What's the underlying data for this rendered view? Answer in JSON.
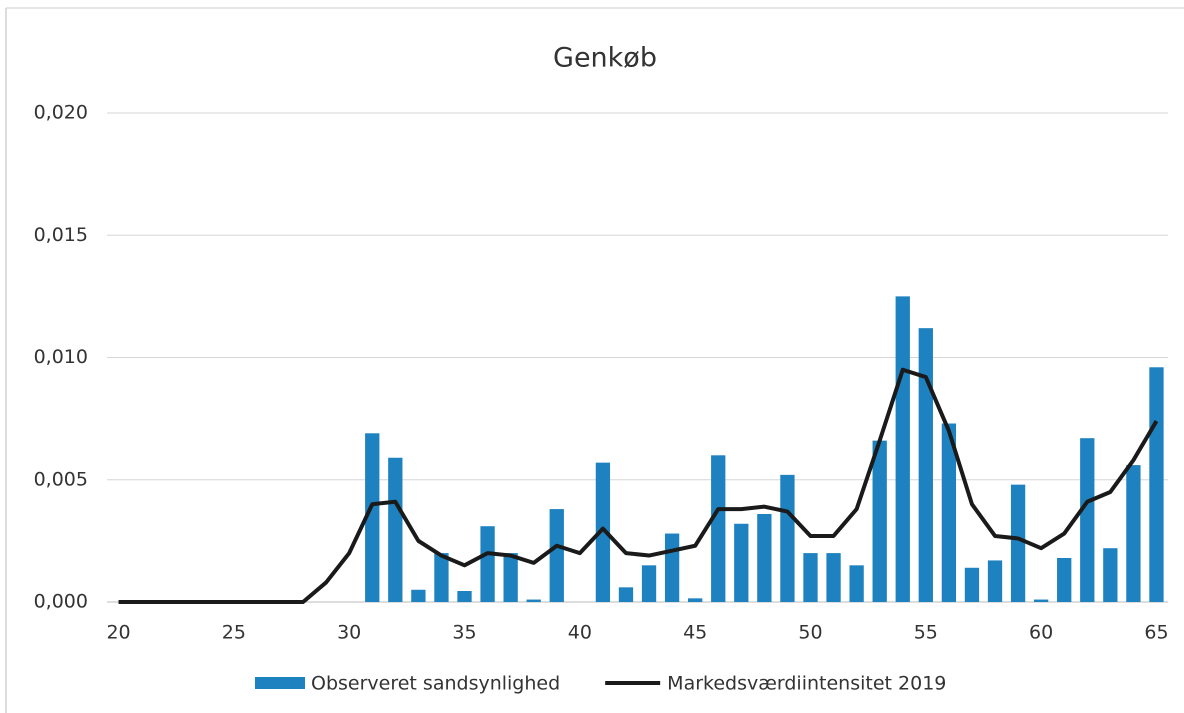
{
  "chart_data": {
    "type": "bar-line",
    "title": "Genkøb",
    "x": [
      20,
      21,
      22,
      23,
      24,
      25,
      26,
      27,
      28,
      29,
      30,
      31,
      32,
      33,
      34,
      35,
      36,
      37,
      38,
      39,
      40,
      41,
      42,
      43,
      44,
      45,
      46,
      47,
      48,
      49,
      50,
      51,
      52,
      53,
      54,
      55,
      56,
      57,
      58,
      59,
      60,
      61,
      62,
      63,
      64,
      65
    ],
    "series": [
      {
        "name": "Observeret sandsynlighed",
        "type": "bar",
        "color": "#1f82c0",
        "values": [
          0,
          0,
          0,
          0,
          0,
          0,
          0,
          0,
          0,
          0,
          0,
          0.0069,
          0.0059,
          0.0005,
          0.002,
          0.00045,
          0.0031,
          0.002,
          0.0001,
          0.0038,
          0,
          0.0057,
          0.0006,
          0.0015,
          0.0028,
          0.00015,
          0.006,
          0.0032,
          0.0036,
          0.0052,
          0.002,
          0.002,
          0.0015,
          0.0066,
          0.0125,
          0.0112,
          0.0073,
          0.0014,
          0.0017,
          0.0048,
          0.0001,
          0.0018,
          0.0067,
          0.0022,
          0.0056,
          0.0096
        ]
      },
      {
        "name": "Markedsværdiintensitet 2019",
        "type": "line",
        "color": "#1a1a1a",
        "values": [
          0,
          0,
          0,
          0,
          0,
          0,
          0,
          0,
          0,
          0.0008,
          0.002,
          0.004,
          0.0041,
          0.0025,
          0.0019,
          0.0015,
          0.002,
          0.0019,
          0.0016,
          0.0023,
          0.002,
          0.003,
          0.002,
          0.0019,
          0.0021,
          0.0023,
          0.0038,
          0.0038,
          0.0039,
          0.0037,
          0.0027,
          0.0027,
          0.0038,
          0.0066,
          0.0095,
          0.0092,
          0.007,
          0.004,
          0.0027,
          0.0026,
          0.0022,
          0.0028,
          0.0041,
          0.0045,
          0.0058,
          0.0074
        ]
      }
    ],
    "xlim": [
      19.5,
      65.5
    ],
    "xticks": [
      20,
      25,
      30,
      35,
      40,
      45,
      50,
      55,
      60,
      65
    ],
    "ylim": [
      0,
      0.02
    ],
    "yticks": [
      {
        "value": 0,
        "label": "0,000"
      },
      {
        "value": 0.005,
        "label": "0,005"
      },
      {
        "value": 0.01,
        "label": "0,010"
      },
      {
        "value": 0.015,
        "label": "0,015"
      },
      {
        "value": 0.02,
        "label": "0,020"
      }
    ],
    "grid": true,
    "legend": "bottom"
  }
}
